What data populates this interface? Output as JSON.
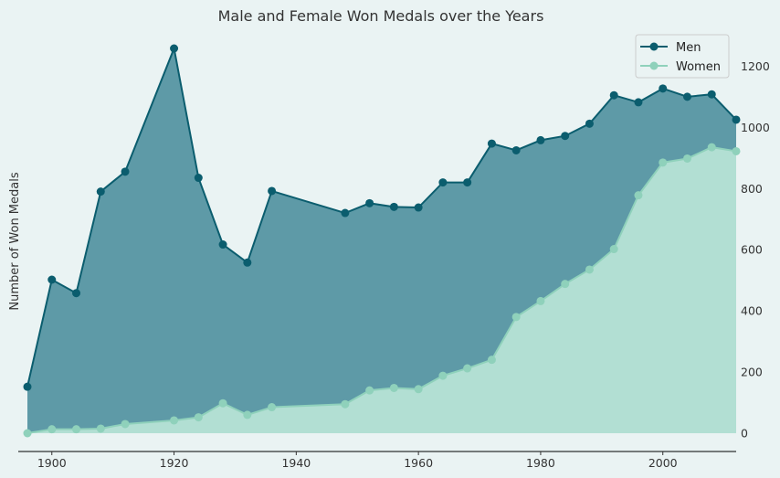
{
  "chart_data": {
    "type": "area",
    "title": "Male and Female Won Medals over the Years",
    "xlabel": "",
    "ylabel": "Number of Won Medals",
    "xlim": [
      1896,
      2012
    ],
    "ylim": [
      0,
      1350
    ],
    "x_ticks": [
      1900,
      1920,
      1940,
      1960,
      1980,
      2000
    ],
    "y_ticks": [
      0,
      200,
      400,
      600,
      800,
      1000,
      1200
    ],
    "y_axis_side": "right",
    "grid": false,
    "legend_position": "top-right",
    "x": [
      1896,
      1900,
      1904,
      1908,
      1912,
      1920,
      1924,
      1928,
      1932,
      1936,
      1948,
      1952,
      1956,
      1960,
      1964,
      1968,
      1972,
      1976,
      1980,
      1984,
      1988,
      1992,
      1996,
      2000,
      2004,
      2008,
      2012
    ],
    "series": [
      {
        "name": "Men",
        "color": "#0b5d6e",
        "fill": "#5e9aa7",
        "values": [
          152,
          502,
          458,
          790,
          855,
          1258,
          835,
          617,
          558,
          792,
          720,
          752,
          740,
          738,
          820,
          820,
          947,
          925,
          958,
          972,
          1012,
          1105,
          1082,
          1127,
          1100,
          1108,
          1025
        ]
      },
      {
        "name": "Women",
        "color": "#8fd1bb",
        "fill": "#b2dfd3",
        "values": [
          0,
          13,
          13,
          15,
          30,
          42,
          52,
          98,
          60,
          85,
          95,
          140,
          148,
          144,
          188,
          212,
          240,
          380,
          432,
          488,
          535,
          602,
          778,
          885,
          898,
          935,
          922
        ]
      }
    ]
  }
}
